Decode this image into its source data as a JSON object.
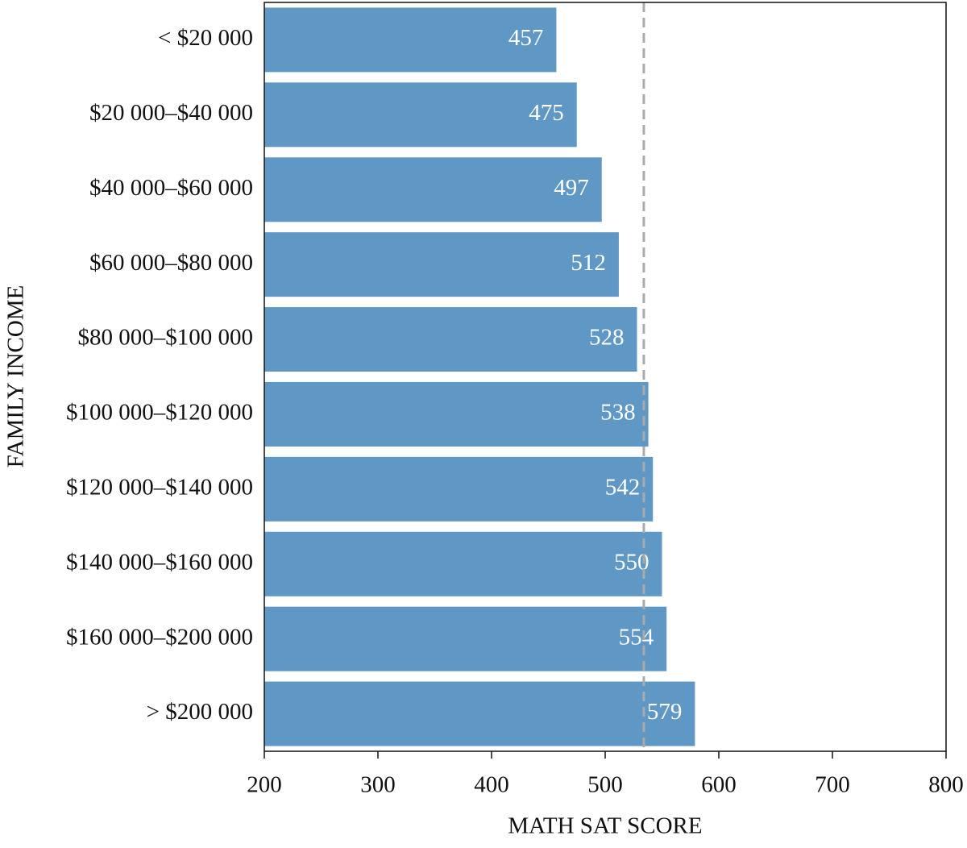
{
  "chart_data": {
    "type": "bar",
    "orientation": "horizontal",
    "x_label": "MATH SAT SCORE",
    "y_label": "FAMILY INCOME",
    "categories": [
      "< $20 000",
      "$20 000–$40 000",
      "$40 000–$60 000",
      "$60 000–$80 000",
      "$80 000–$100 000",
      "$100 000–$120 000",
      "$120 000–$140 000",
      "$140 000–$160 000",
      "$160 000–$200 000",
      "> $200 000"
    ],
    "values": [
      457,
      475,
      497,
      512,
      528,
      538,
      542,
      550,
      554,
      579
    ],
    "color": "#6098c5",
    "xlim": [
      200,
      800
    ],
    "xticks": [
      200,
      300,
      400,
      500,
      600,
      700,
      800
    ],
    "reference_x": 534,
    "reference_color": "#aaaaaa"
  }
}
